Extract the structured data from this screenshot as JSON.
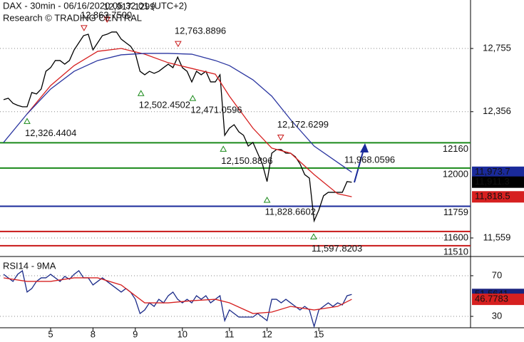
{
  "chart_data": [
    {
      "type": "line",
      "title": "DAX - 30min - 06/16/2020 05:32:01 (UTC+2)",
      "subtitle": "Research © TRADING CENTRAL",
      "categories": [
        null,
        null,
        null,
        null,
        null,
        null,
        null,
        null,
        null,
        null,
        "5",
        null,
        null,
        null,
        null,
        null,
        null,
        null,
        null,
        "8",
        null,
        null,
        null,
        null,
        null,
        null,
        null,
        null,
        "9",
        null,
        null,
        null,
        null,
        null,
        null,
        null,
        null,
        null,
        "10",
        null,
        null,
        null,
        null,
        null,
        null,
        null,
        null,
        null,
        "11",
        null,
        null,
        null,
        null,
        null,
        null,
        null,
        "12",
        null,
        null,
        null,
        null,
        null,
        null,
        null,
        null,
        null,
        null,
        "15",
        null,
        null,
        null,
        null,
        null,
        null,
        null
      ],
      "ylim": [
        11442,
        13061
      ],
      "yticks": [
        {
          "value": 11559,
          "label": "11,559"
        },
        {
          "value": 12356,
          "label": "12,356"
        },
        {
          "value": 12755,
          "label": "12,755"
        }
      ],
      "grid": true,
      "series": [
        {
          "color": "#000000",
          "values": [
            12432,
            12441,
            12409,
            12396,
            12387,
            12387,
            12477,
            12468,
            12499,
            12611,
            12634,
            12679,
            12679,
            12656,
            12679,
            12746,
            12791,
            12836,
            12845,
            12746,
            12791,
            12836,
            12845,
            12859,
            12859,
            12814,
            12791,
            12769,
            12724,
            12611,
            12589,
            12611,
            12598,
            12611,
            12634,
            12656,
            12634,
            12701,
            12634,
            12611,
            12544,
            12611,
            12589,
            12611,
            12544,
            12544,
            12589,
            12207,
            12252,
            12274,
            12229,
            12207,
            12139,
            12162,
            12094,
            12027,
            11915,
            12094,
            12117,
            12117,
            12094,
            12094,
            12072,
            12027,
            11959,
            11937,
            11667,
            11735,
            11825,
            11847,
            11847,
            11847,
            11847,
            11915,
            11911
          ]
        },
        {
          "color": "#d62020",
          "x": [
            5,
            10,
            15,
            20,
            25,
            30,
            35,
            40,
            45,
            48,
            53,
            57,
            61,
            66,
            71,
            74
          ],
          "values": [
            12342,
            12521,
            12647,
            12737,
            12755,
            12719,
            12665,
            12629,
            12593,
            12454,
            12252,
            12126,
            12094,
            11959,
            11838,
            11819
          ]
        },
        {
          "color": "#2a35a0",
          "x": [
            0,
            5,
            10,
            15,
            20,
            25,
            30,
            35,
            40,
            45,
            48,
            53,
            57,
            61,
            66,
            71,
            74
          ],
          "values": [
            12162,
            12342,
            12499,
            12611,
            12679,
            12715,
            12724,
            12724,
            12719,
            12679,
            12647,
            12557,
            12454,
            12306,
            12139,
            12036,
            11974
          ]
        }
      ],
      "levels": [
        {
          "value": 12160,
          "color": "#1a8a1a"
        },
        {
          "value": 12000,
          "color": "#1a8a1a"
        },
        {
          "value": 11759,
          "color": "#1a2a9a"
        },
        {
          "value": 11600,
          "color": "#c81818"
        },
        {
          "value": 11510,
          "color": "#c81818"
        }
      ],
      "annotations": [
        {
          "value": 12917.1299,
          "label": "12,917.1299",
          "x": 22,
          "marker": "down"
        },
        {
          "value": 12863.75,
          "label": "12,863.7500",
          "x": 17.1,
          "marker": "down"
        },
        {
          "value": 12763.8896,
          "label": "12,763.8896",
          "x": 37.1,
          "marker": "down"
        },
        {
          "value": 12502.4502,
          "label": "12,502.4502",
          "x": 29.2,
          "marker": "up"
        },
        {
          "value": 12471.0596,
          "label": "12,471.0596",
          "x": 40.2,
          "marker": "up"
        },
        {
          "value": 12326.4404,
          "label": "12,326.4404",
          "x": 5,
          "marker": "up"
        },
        {
          "value": 12172.6299,
          "label": "12,172.6299",
          "x": 58.9,
          "marker": "down"
        },
        {
          "value": 12150.8896,
          "label": "12,150.8896",
          "x": 46.7,
          "marker": "up"
        },
        {
          "value": 11828.6602,
          "label": "11,828.6602",
          "x": 56,
          "marker": "up"
        },
        {
          "value": 11597.8203,
          "label": "11,597.8203",
          "x": 65.9,
          "marker": "up"
        },
        {
          "value": 11968.0596,
          "label": "11,968.0596",
          "x": 72.4,
          "marker": "none"
        }
      ],
      "last_values": [
        {
          "value": 11973.7,
          "label": "11,973.7",
          "color": "#1a2a9a"
        },
        {
          "value": 11911.3,
          "label": "11,911.3",
          "color": "#000000"
        },
        {
          "value": 11818.5,
          "label": "11,818.5",
          "color": "#d62020"
        }
      ]
    },
    {
      "type": "line",
      "title": "RSI14 - 9MA",
      "ylim": [
        18.8,
        87.5
      ],
      "yticks": [
        30,
        70
      ],
      "grid": true,
      "series": [
        {
          "color": "#1a2a88",
          "values": [
            71.4,
            67.9,
            64.4,
            71.4,
            74.9,
            53.9,
            57.4,
            64.4,
            67.9,
            67.9,
            71.4,
            67.9,
            64.4,
            69.3,
            66.5,
            71.4,
            74.9,
            67.9,
            67.9,
            60.9,
            64.4,
            67.9,
            64.4,
            60.9,
            57.4,
            53.9,
            57.4,
            53.9,
            46.8,
            32.8,
            36.3,
            43.3,
            39.8,
            46.8,
            43.3,
            50.3,
            53.9,
            46.8,
            43.3,
            46.8,
            43.3,
            50.3,
            46.8,
            50.3,
            43.3,
            46.8,
            50.3,
            25.8,
            36.3,
            32.8,
            29.3,
            29.3,
            29.3,
            29.3,
            32.8,
            29.3,
            25.8,
            46.8,
            46.8,
            43.3,
            46.8,
            43.3,
            39.8,
            36.3,
            39.8,
            36.3,
            20,
            36.3,
            39.8,
            43.3,
            39.8,
            43.3,
            41.2,
            50.3,
            51.6
          ]
        },
        {
          "color": "#d62020",
          "x": [
            0,
            5,
            10,
            15,
            20,
            25,
            30,
            35,
            40,
            45,
            48,
            53,
            57,
            61,
            66,
            71,
            74
          ],
          "values": [
            67.9,
            64.4,
            64.4,
            67.9,
            67.9,
            60.9,
            43.3,
            43.3,
            45.4,
            46.8,
            43.3,
            32.8,
            34.2,
            39.8,
            36.3,
            39.8,
            46.78
          ]
        }
      ],
      "last_values": [
        {
          "value": 51.5641,
          "color": "#1a237e"
        },
        {
          "value": 46.7783,
          "color": "#d62020"
        }
      ]
    }
  ]
}
